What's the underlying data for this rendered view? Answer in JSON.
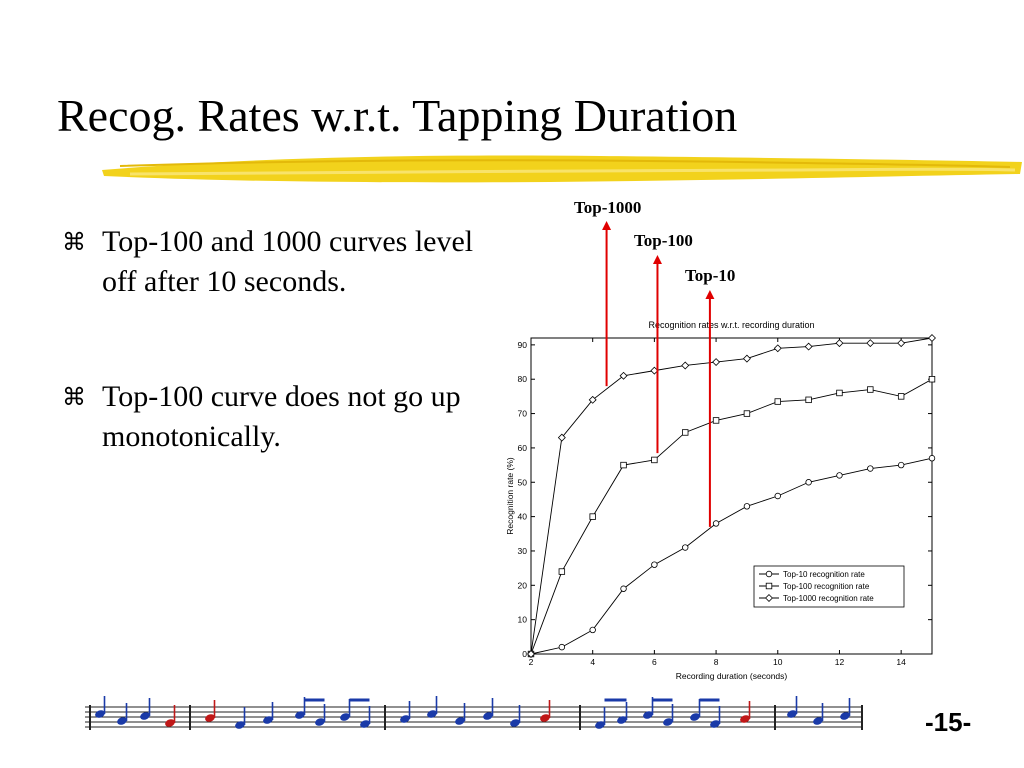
{
  "slide": {
    "title": "Recog. Rates w.r.t. Tapping Duration",
    "bullets": [
      {
        "marker_icon": "command-key-icon",
        "text": "Top-100 and 1000 curves level off after 10 seconds."
      },
      {
        "marker_icon": "command-key-icon",
        "text": "Top-100 curve does not go up monotonically."
      }
    ],
    "callouts": [
      "Top-1000",
      "Top-100",
      "Top-10"
    ],
    "page_number": "-15-",
    "colors": {
      "accent_brush": "#f2d21c",
      "arrow": "#e00000"
    }
  },
  "chart_data": {
    "type": "line",
    "title": "Recognition rates w.r.t. recording duration",
    "xlabel": "Recording duration (seconds)",
    "ylabel": "Recognition rate (%)",
    "xlim": [
      2,
      15
    ],
    "ylim": [
      0,
      92
    ],
    "xticks": [
      2,
      4,
      6,
      8,
      10,
      12,
      14
    ],
    "yticks": [
      0,
      10,
      20,
      30,
      40,
      50,
      60,
      70,
      80,
      90
    ],
    "grid": false,
    "legend_position": "lower-right",
    "x": [
      2,
      3,
      4,
      5,
      6,
      7,
      8,
      9,
      10,
      11,
      12,
      13,
      14,
      15
    ],
    "series": [
      {
        "name": "Top-10 recognition rate",
        "marker": "circle",
        "values": [
          0,
          2,
          7,
          19,
          26,
          31,
          38,
          43,
          46,
          50,
          52,
          54,
          55,
          57
        ]
      },
      {
        "name": "Top-100 recognition rate",
        "marker": "square",
        "values": [
          0,
          24,
          40,
          55,
          56.5,
          64.5,
          68,
          70,
          73.5,
          74,
          76,
          77,
          75,
          80
        ]
      },
      {
        "name": "Top-1000 recognition rate",
        "marker": "diamond",
        "values": [
          0,
          63,
          74,
          81,
          82.5,
          84,
          85,
          86,
          89,
          89.5,
          90.5,
          90.5,
          90.5,
          92
        ]
      }
    ],
    "arrows": [
      {
        "label": "Top-1000",
        "x": 4.45,
        "y_from": 78,
        "series": "Top-1000 recognition rate"
      },
      {
        "label": "Top-100",
        "x": 6.1,
        "y_from": 58.5,
        "series": "Top-100 recognition rate"
      },
      {
        "label": "Top-10",
        "x": 7.8,
        "y_from": 37,
        "series": "Top-10 recognition rate"
      }
    ]
  }
}
